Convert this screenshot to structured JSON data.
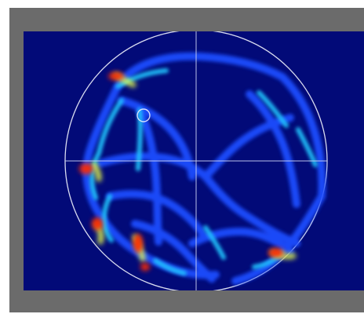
{
  "image": {
    "colors": {
      "frame": "#ffffff",
      "border": "#6b6b6b",
      "background": "#020a78",
      "circle": "#d9dcf0",
      "crosshair": "#cfd4f4",
      "trail_low": "#1b4dff",
      "trail_mid": "#21c6ff",
      "trail_high": "#e9ff4a",
      "hotspot": "#ff2a00"
    },
    "elements": {
      "arena": "circular-arena",
      "crosshair": "center-crosshair",
      "marker": "start-marker-circle"
    }
  }
}
